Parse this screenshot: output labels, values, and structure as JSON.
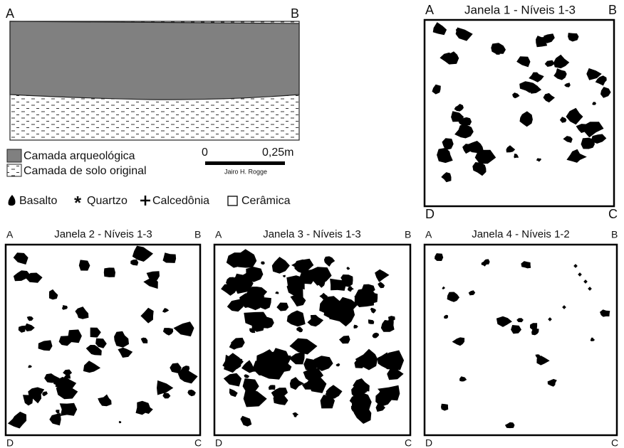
{
  "profile": {
    "corner_left": "A",
    "corner_right": "B"
  },
  "legend": {
    "layers": [
      "Camada arqueológica",
      "Camada de solo original"
    ],
    "scale": {
      "start": "0",
      "end": "0,25m",
      "author": "Jairo H. Rogge"
    },
    "symbols": [
      "Basalto",
      "Quartzo",
      "Calcedônia",
      "Cerâmica"
    ]
  },
  "panels": [
    {
      "title": "Janela 1 - Níveis 1-3",
      "corners": [
        "A",
        "B",
        "C",
        "D"
      ]
    },
    {
      "title": "Janela 2 - Níveis 1-3",
      "corners": [
        "A",
        "B",
        "C",
        "D"
      ]
    },
    {
      "title": "Janela 3 - Níveis 1-3",
      "corners": [
        "A",
        "B",
        "C",
        "D"
      ]
    },
    {
      "title": "Janela 4 - Níveis 1-2",
      "corners": [
        "A",
        "B",
        "C",
        "D"
      ]
    }
  ]
}
